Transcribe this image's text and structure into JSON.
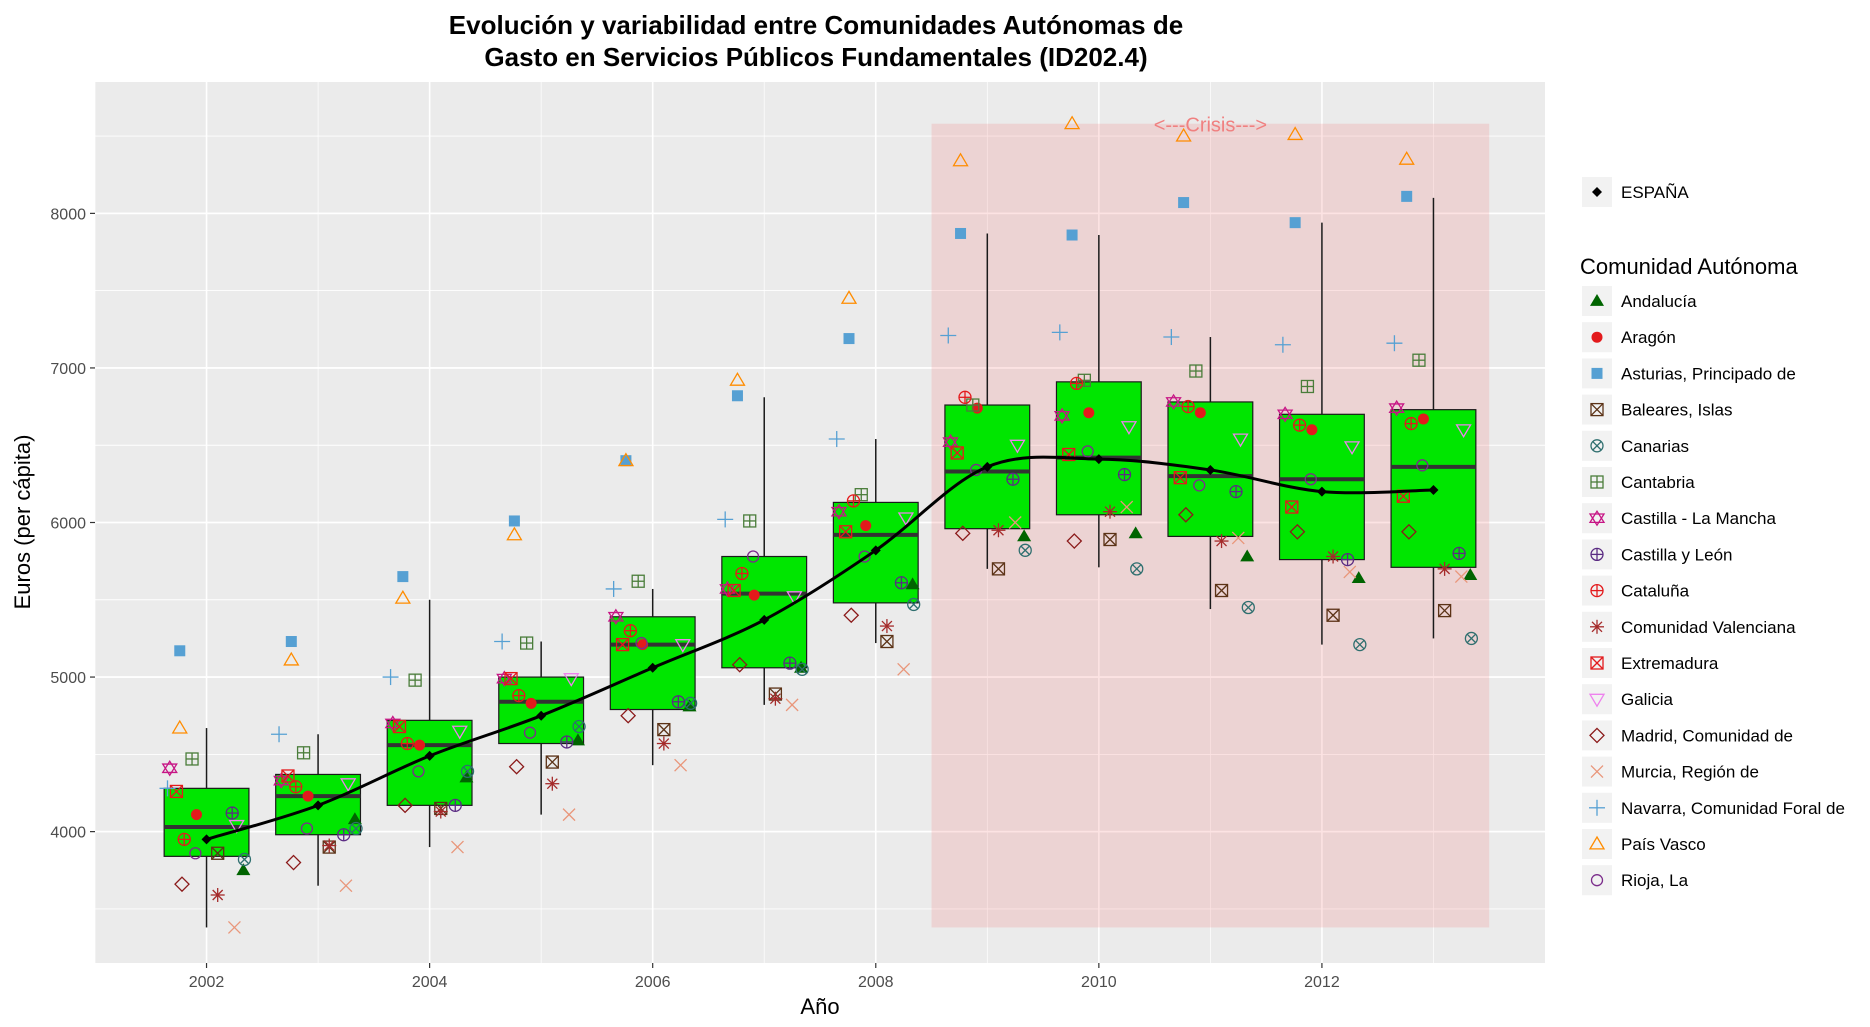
{
  "chart_data": {
    "type": "box",
    "title_line1": "Evolución y variabilidad entre Comunidades Autónomas de",
    "title_line2": "Gasto en Servicios Públicos Fundamentales (ID202.4)",
    "xlabel": "Año",
    "ylabel": "Euros (per cápita)",
    "xlim": [
      2001.0,
      2014.0
    ],
    "ylim": [
      3150,
      8850
    ],
    "x_ticks": [
      2002,
      2004,
      2006,
      2008,
      2010,
      2012
    ],
    "y_ticks": [
      4000,
      5000,
      6000,
      7000,
      8000
    ],
    "grid": true,
    "crisis": {
      "label": "<---Crisis--->",
      "x_start": 2008.5,
      "x_end": 2013.5,
      "y_min": 3380,
      "y_max": 8580,
      "color": "#f08080"
    },
    "box_color": "#00e600",
    "boxes": [
      {
        "year": 2002,
        "q1": 3840,
        "median": 4030,
        "q3": 4280,
        "low": 3380,
        "high": 4670
      },
      {
        "year": 2003,
        "q1": 3980,
        "median": 4230,
        "q3": 4370,
        "low": 3650,
        "high": 4630
      },
      {
        "year": 2004,
        "q1": 4170,
        "median": 4560,
        "q3": 4720,
        "low": 3900,
        "high": 5500
      },
      {
        "year": 2005,
        "q1": 4570,
        "median": 4840,
        "q3": 5000,
        "low": 4110,
        "high": 5230
      },
      {
        "year": 2006,
        "q1": 4790,
        "median": 5210,
        "q3": 5390,
        "low": 4430,
        "high": 5570
      },
      {
        "year": 2007,
        "q1": 5060,
        "median": 5540,
        "q3": 5780,
        "low": 4820,
        "high": 6810
      },
      {
        "year": 2008,
        "q1": 5480,
        "median": 5920,
        "q3": 6130,
        "low": 5220,
        "high": 6540
      },
      {
        "year": 2009,
        "q1": 5960,
        "median": 6330,
        "q3": 6760,
        "low": 5700,
        "high": 7870
      },
      {
        "year": 2010,
        "q1": 6050,
        "median": 6420,
        "q3": 6910,
        "low": 5710,
        "high": 7860
      },
      {
        "year": 2011,
        "q1": 5910,
        "median": 6300,
        "q3": 6780,
        "low": 5440,
        "high": 7200
      },
      {
        "year": 2012,
        "q1": 5760,
        "median": 6280,
        "q3": 6700,
        "low": 5210,
        "high": 7940
      },
      {
        "year": 2013,
        "q1": 5710,
        "median": 6360,
        "q3": 6730,
        "low": 5250,
        "high": 8100
      }
    ],
    "espana": {
      "name": "ESPAÑA",
      "x": [
        2002,
        2003,
        2004,
        2005,
        2006,
        2007,
        2008,
        2009,
        2010,
        2011,
        2012,
        2013
      ],
      "y": [
        3950,
        4170,
        4490,
        4750,
        5060,
        5370,
        5820,
        6360,
        6410,
        6340,
        6200,
        6210
      ]
    },
    "legend_title": "Comunidad Autónoma",
    "series": [
      {
        "name": "Andalucía",
        "shape": "triangle-filled",
        "color": "#006400",
        "offset": 0.33,
        "values": [
          3750,
          4080,
          4350,
          4590,
          4810,
          5060,
          5600,
          5910,
          5930,
          5780,
          5640,
          5660
        ]
      },
      {
        "name": "Aragón",
        "shape": "circle-filled",
        "color": "#e31a1c",
        "offset": -0.09,
        "values": [
          4110,
          4230,
          4560,
          4830,
          5210,
          5530,
          5980,
          6740,
          6710,
          6710,
          6600,
          6670
        ]
      },
      {
        "name": "Asturias, Principado de",
        "shape": "square-filled",
        "color": "#56a0d3",
        "offset": -0.24,
        "values": [
          5170,
          5230,
          5650,
          6010,
          6400,
          6820,
          7190,
          7870,
          7860,
          8070,
          7940,
          8110
        ]
      },
      {
        "name": "Baleares, Islas",
        "shape": "square-x",
        "color": "#5c3317",
        "offset": 0.1,
        "values": [
          3860,
          3900,
          4150,
          4450,
          4660,
          4890,
          5230,
          5700,
          5890,
          5560,
          5400,
          5430
        ]
      },
      {
        "name": "Canarias",
        "shape": "circle-x",
        "color": "#2f6f6f",
        "offset": 0.34,
        "values": [
          3820,
          4020,
          4390,
          4680,
          4830,
          5050,
          5470,
          5820,
          5700,
          5450,
          5210,
          5250
        ]
      },
      {
        "name": "Cantabria",
        "shape": "square-plus",
        "color": "#4a7d3a",
        "offset": -0.13,
        "values": [
          4470,
          4510,
          4980,
          5220,
          5620,
          6010,
          6180,
          6760,
          6920,
          6980,
          6880,
          7050
        ]
      },
      {
        "name": "Castilla - La Mancha",
        "shape": "star-david",
        "color": "#c71585",
        "offset": -0.33,
        "values": [
          4410,
          4330,
          4700,
          4990,
          5390,
          5570,
          6070,
          6520,
          6690,
          6780,
          6700,
          6740
        ]
      },
      {
        "name": "Castilla y León",
        "shape": "circle-plus",
        "color": "#5b2c83",
        "offset": 0.23,
        "values": [
          4120,
          3980,
          4170,
          4580,
          4840,
          5090,
          5610,
          6280,
          6310,
          6200,
          5760,
          5800
        ]
      },
      {
        "name": "Cataluña",
        "shape": "circle-plus",
        "color": "#e31a1c",
        "offset": -0.2,
        "values": [
          3950,
          4290,
          4570,
          4880,
          5300,
          5670,
          6140,
          6810,
          6900,
          6750,
          6630,
          6640
        ]
      },
      {
        "name": "Comunidad Valenciana",
        "shape": "asterisk",
        "color": "#a52a2a",
        "offset": 0.1,
        "values": [
          3590,
          3910,
          4130,
          4310,
          4570,
          4860,
          5330,
          5950,
          6070,
          5880,
          5780,
          5700
        ]
      },
      {
        "name": "Extremadura",
        "shape": "square-x",
        "color": "#e31a1c",
        "offset": -0.27,
        "values": [
          4260,
          4360,
          4680,
          4990,
          5210,
          5560,
          5940,
          6450,
          6440,
          6290,
          6100,
          6170
        ]
      },
      {
        "name": "Galicia",
        "shape": "triangle-down",
        "color": "#ee82ee",
        "offset": 0.27,
        "values": [
          4040,
          4310,
          4650,
          4990,
          5210,
          5520,
          6030,
          6500,
          6620,
          6540,
          6490,
          6600
        ]
      },
      {
        "name": "Madrid, Comunidad de",
        "shape": "diamond",
        "color": "#8b1a1a",
        "offset": -0.22,
        "values": [
          3660,
          3800,
          4170,
          4420,
          4750,
          5080,
          5400,
          5930,
          5880,
          6050,
          5940,
          5940
        ]
      },
      {
        "name": "Murcia, Región de",
        "shape": "x",
        "color": "#e9967a",
        "offset": 0.25,
        "values": [
          3380,
          3650,
          3900,
          4110,
          4430,
          4820,
          5050,
          6000,
          6100,
          5900,
          5680,
          5650
        ]
      },
      {
        "name": "Navarra, Comunidad Foral de",
        "shape": "plus",
        "color": "#56a0d3",
        "offset": -0.35,
        "values": [
          4280,
          4630,
          5000,
          5230,
          5570,
          6020,
          6540,
          7210,
          7230,
          7200,
          7150,
          7160
        ]
      },
      {
        "name": "País Vasco",
        "shape": "triangle-open",
        "color": "#ff8c00",
        "offset": -0.24,
        "values": [
          4670,
          5110,
          5510,
          5920,
          6400,
          6920,
          7450,
          8340,
          8580,
          8500,
          8510,
          8350
        ]
      },
      {
        "name": "Rioja, La",
        "shape": "circle-open",
        "color": "#7b2d8b",
        "offset": -0.1,
        "values": [
          3860,
          4020,
          4390,
          4640,
          5220,
          5780,
          5780,
          6340,
          6460,
          6240,
          6280,
          6370
        ]
      }
    ]
  }
}
